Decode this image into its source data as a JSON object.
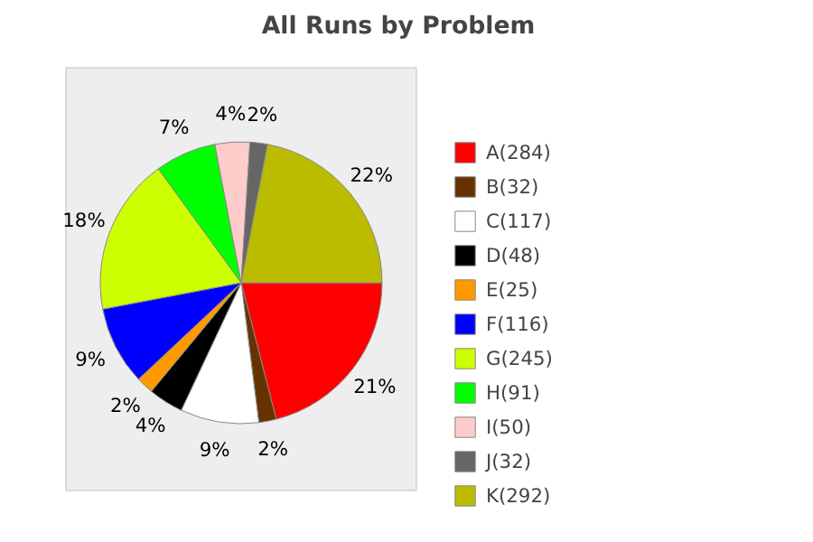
{
  "chart_data": {
    "type": "pie",
    "title": "All Runs by Problem",
    "categories": [
      "A(284)",
      "B(32)",
      "C(117)",
      "D(48)",
      "E(25)",
      "F(116)",
      "G(245)",
      "H(91)",
      "I(50)",
      "J(32)",
      "K(292)"
    ],
    "values": [
      21,
      2,
      9,
      4,
      2,
      9,
      18,
      7,
      4,
      2,
      22
    ],
    "value_labels": [
      "21%",
      "2%",
      "9%",
      "4%",
      "2%",
      "9%",
      "18%",
      "7%",
      "4%",
      "2%",
      "22%"
    ],
    "colors": [
      "#ff0000",
      "#663300",
      "#ffffff",
      "#000000",
      "#ff9900",
      "#0000ff",
      "#ccff00",
      "#00ff00",
      "#ffcccc",
      "#666666",
      "#bbbb00"
    ],
    "legend": "right"
  }
}
